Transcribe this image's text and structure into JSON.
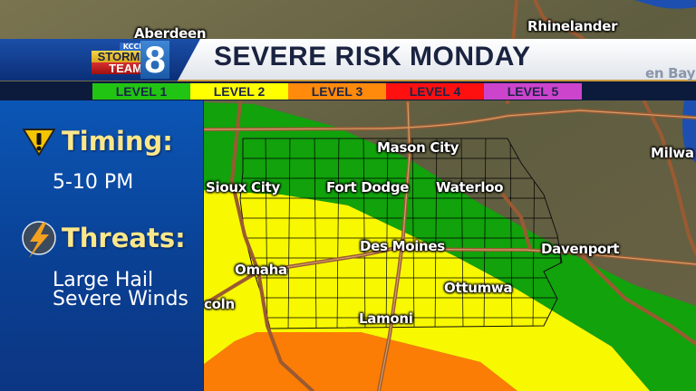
{
  "header": {
    "title": "SEVERE RISK MONDAY",
    "logo": {
      "station": "KCCI",
      "line1": "STORM",
      "line2": "TEAM",
      "channel": "8"
    }
  },
  "levels": [
    {
      "label": "LEVEL 1",
      "color": "#22c414"
    },
    {
      "label": "LEVEL 2",
      "color": "#ffff00"
    },
    {
      "label": "LEVEL 3",
      "color": "#ff8a0c"
    },
    {
      "label": "LEVEL 4",
      "color": "#ff1010"
    },
    {
      "label": "LEVEL 5",
      "color": "#cc44cc"
    }
  ],
  "sidebar": {
    "timing_heading": "Timing:",
    "timing_icon": "warning-triangle-icon",
    "timing_value": "5-10 PM",
    "threats_heading": "Threats:",
    "threats_icon": "lightning-bolt-icon",
    "threats": [
      "Large Hail",
      "Severe Winds"
    ]
  },
  "map": {
    "risk_colors": {
      "level1": "#11a20c",
      "level2": "#f8f800",
      "level3": "#fb7d06"
    },
    "cities": [
      "Aberdeen",
      "Rhinelander",
      "en Bay",
      "Milwa",
      "Mason City",
      "Sioux City",
      "Fort Dodge",
      "Waterloo",
      "Des Moines",
      "Davenport",
      "Omaha",
      "Ottumwa",
      "coln",
      "Lamoni"
    ]
  }
}
